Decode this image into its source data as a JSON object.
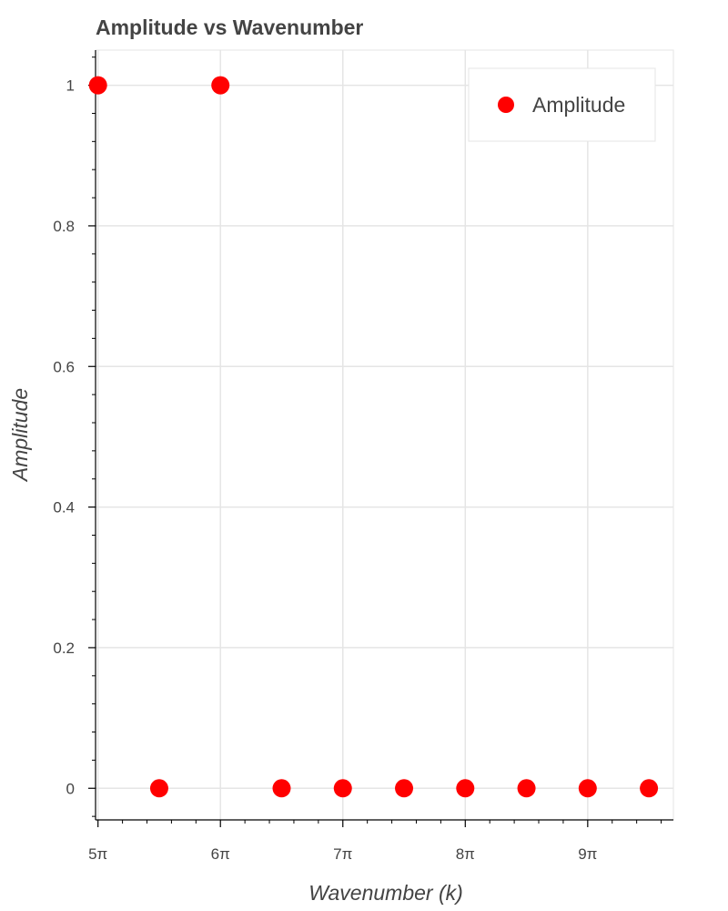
{
  "chart_data": {
    "type": "scatter",
    "title": "Amplitude vs Wavenumber",
    "xlabel": "Wavenumber (k)",
    "ylabel": "Amplitude",
    "x_unit": "π",
    "x_ticks": [
      5,
      6,
      7,
      8,
      9
    ],
    "x_tick_labels": [
      "5π",
      "6π",
      "7π",
      "8π",
      "9π"
    ],
    "y_ticks": [
      0,
      0.2,
      0.4,
      0.6,
      0.8,
      1
    ],
    "y_tick_labels": [
      "0",
      "0.2",
      "0.4",
      "0.6",
      "0.8",
      "1"
    ],
    "xlim": [
      4.98,
      9.7
    ],
    "ylim": [
      -0.045,
      1.05
    ],
    "grid": true,
    "legend_position": "top-right",
    "series": [
      {
        "name": "Amplitude",
        "color": "#ff0000",
        "marker": "circle",
        "x": [
          5,
          5.5,
          6,
          6.5,
          7,
          7.5,
          8,
          8.5,
          9,
          9.5
        ],
        "y": [
          1,
          0,
          1,
          0,
          0,
          0,
          0,
          0,
          0,
          0
        ]
      }
    ]
  }
}
